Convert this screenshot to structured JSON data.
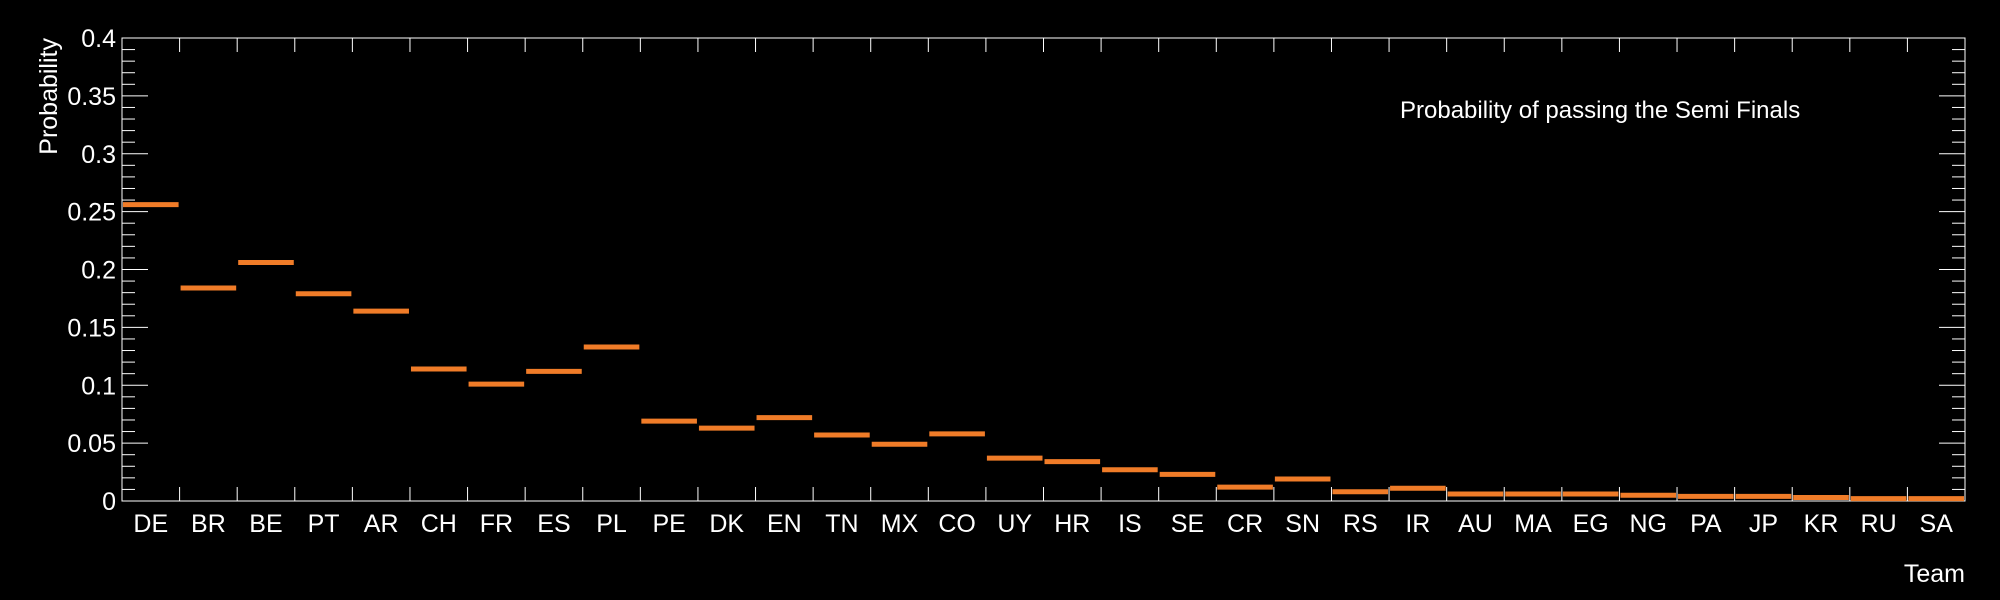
{
  "chart_data": {
    "type": "bar",
    "title": "Probability of passing the Semi Finals",
    "xlabel": "Team",
    "ylabel": "Probability",
    "ylim": [
      0,
      0.4
    ],
    "y_ticks": [
      "0",
      "0.05",
      "0.1",
      "0.15",
      "0.2",
      "0.25",
      "0.3",
      "0.35",
      "0.4"
    ],
    "y_tick_values": [
      0,
      0.05,
      0.1,
      0.15,
      0.2,
      0.25,
      0.3,
      0.35,
      0.4
    ],
    "categories": [
      "DE",
      "BR",
      "BE",
      "PT",
      "AR",
      "CH",
      "FR",
      "ES",
      "PL",
      "PE",
      "DK",
      "EN",
      "TN",
      "MX",
      "CO",
      "UY",
      "HR",
      "IS",
      "SE",
      "CR",
      "SN",
      "RS",
      "IR",
      "AU",
      "MA",
      "EG",
      "NG",
      "PA",
      "JP",
      "KR",
      "RU",
      "SA"
    ],
    "values": [
      0.256,
      0.184,
      0.206,
      0.179,
      0.164,
      0.114,
      0.101,
      0.112,
      0.133,
      0.069,
      0.063,
      0.072,
      0.057,
      0.049,
      0.058,
      0.037,
      0.034,
      0.027,
      0.023,
      0.012,
      0.019,
      0.008,
      0.011,
      0.006,
      0.006,
      0.006,
      0.005,
      0.004,
      0.004,
      0.003,
      0.002,
      0.002
    ],
    "series_color": "#f07c28",
    "background_color": "#000000",
    "axis_color": "#ffffff",
    "grid": false,
    "legend": "none"
  }
}
